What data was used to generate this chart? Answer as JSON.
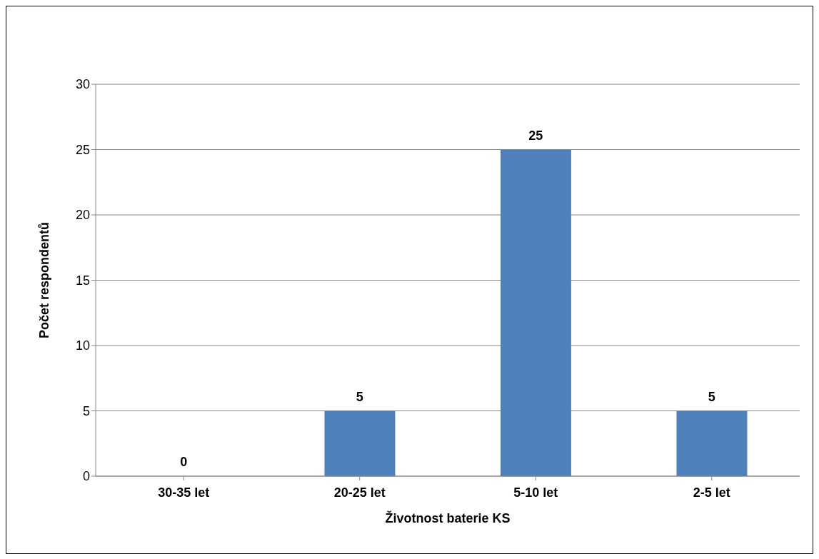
{
  "chart_data": {
    "type": "bar",
    "xlabel": "Životnost baterie KS",
    "ylabel": "Počet respondentů",
    "categories": [
      "30-35 let",
      "20-25 let",
      "5-10 let",
      "2-5 let"
    ],
    "values": [
      0,
      5,
      25,
      5
    ],
    "color": "#4f81bd",
    "ylim": [
      0,
      30
    ],
    "yticks": [
      0,
      5,
      10,
      15,
      20,
      25,
      30
    ],
    "grid": "y",
    "data_labels": true
  }
}
